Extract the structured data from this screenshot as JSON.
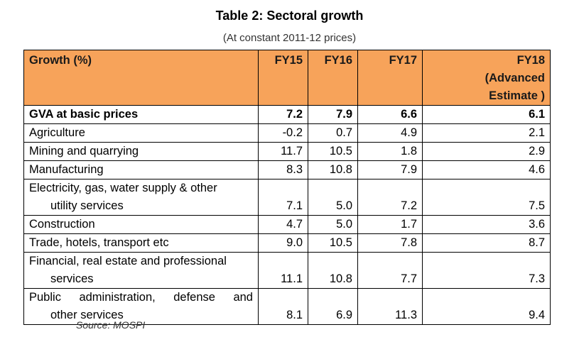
{
  "title": "Table 2: Sectoral growth",
  "subtitle": "(At constant 2011-12 prices)",
  "header": {
    "label": "Growth (%)",
    "fy15": "FY15",
    "fy16": "FY16",
    "fy17": "FY17",
    "fy18_line1": "FY18",
    "fy18_line2": "(Advanced",
    "fy18_line3": "Estimate )"
  },
  "rows": {
    "gva": {
      "label": "GVA at basic prices",
      "fy15": "7.2",
      "fy16": "7.9",
      "fy17": "6.6",
      "fy18": "6.1"
    },
    "agriculture": {
      "label": "Agriculture",
      "fy15": "-0.2",
      "fy16": "0.7",
      "fy17": "4.9",
      "fy18": "2.1"
    },
    "mining": {
      "label": "Mining and quarrying",
      "fy15": "11.7",
      "fy16": "10.5",
      "fy17": "1.8",
      "fy18": "2.9"
    },
    "manufacturing": {
      "label": "Manufacturing",
      "fy15": "8.3",
      "fy16": "10.8",
      "fy17": "7.9",
      "fy18": "4.6"
    },
    "electricity": {
      "label_line1": "Electricity, gas, water supply & other",
      "label_line2": "utility services",
      "fy15": "7.1",
      "fy16": "5.0",
      "fy17": "7.2",
      "fy18": "7.5"
    },
    "construction": {
      "label": "Construction",
      "fy15": "4.7",
      "fy16": "5.0",
      "fy17": "1.7",
      "fy18": "3.6"
    },
    "trade": {
      "label": "Trade, hotels, transport etc",
      "fy15": "9.0",
      "fy16": "10.5",
      "fy17": "7.8",
      "fy18": "8.7"
    },
    "financial": {
      "label_line1": "Financial, real estate and professional",
      "label_line2": "services",
      "fy15": "11.1",
      "fy16": "10.8",
      "fy17": "7.7",
      "fy18": "7.3"
    },
    "public": {
      "label_line1": "Public administration, defense and",
      "label_line2": "other services",
      "fy15": "8.1",
      "fy16": "6.9",
      "fy17": "11.3",
      "fy18": "9.4"
    }
  },
  "source": "Source: MOSPI",
  "colors": {
    "header_bg": "#f7a35a"
  }
}
